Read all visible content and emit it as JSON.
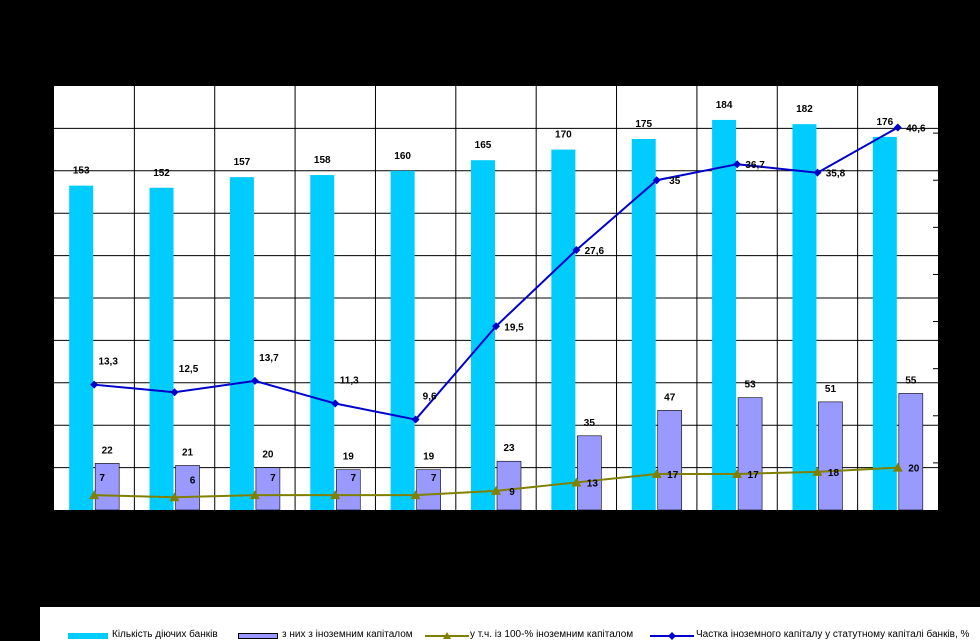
{
  "chart_data": {
    "type": "bar",
    "categories": [
      "",
      "",
      "",
      "",
      "",
      "",
      "",
      "",
      "",
      "",
      ""
    ],
    "series": [
      {
        "name": "Кількість діючих банків",
        "type": "bar",
        "color": "#00CCFF",
        "values": [
          153,
          152,
          157,
          158,
          160,
          165,
          170,
          175,
          184,
          182,
          176
        ]
      },
      {
        "name": "з них з іноземним капіталом",
        "type": "bar",
        "color": "#9999FF",
        "values": [
          22,
          21,
          20,
          19,
          19,
          23,
          35,
          47,
          53,
          51,
          55
        ]
      },
      {
        "name": "у т.ч. із 100-% іноземним капіталом",
        "type": "line",
        "color": "#808000",
        "marker": "triangle",
        "values": [
          7,
          6,
          7,
          7,
          7,
          9,
          13,
          17,
          17,
          18,
          20
        ]
      },
      {
        "name": "Частка іноземного капіталу у статутному капіталі банків, %",
        "type": "line",
        "color": "#0000CC",
        "marker": "diamond",
        "axis": "secondary",
        "values": [
          13.3,
          12.5,
          13.7,
          11.3,
          9.6,
          19.5,
          27.6,
          35,
          36.7,
          35.8,
          40.6
        ]
      }
    ],
    "value_labels": {
      "bars_main": [
        "153",
        "152",
        "157",
        "158",
        "160",
        "165",
        "170",
        "175",
        "184",
        "182",
        "176"
      ],
      "bars_foreign": [
        "22",
        "21",
        "20",
        "19",
        "19",
        "23",
        "35",
        "47",
        "53",
        "51",
        "55"
      ],
      "line_100pct": [
        "7",
        "6",
        "7",
        "7",
        "7",
        "9",
        "13",
        "17",
        "17",
        "18",
        "20"
      ],
      "line_share": [
        "13,3",
        "12,5",
        "13,7",
        "11,3",
        "9,6",
        "19,5",
        "27,6",
        "35",
        "36,7",
        "35,8",
        "40,6"
      ]
    },
    "ylim": [
      0,
      200
    ],
    "y2lim": [
      0,
      45
    ],
    "grid": true,
    "legend_position": "bottom"
  }
}
